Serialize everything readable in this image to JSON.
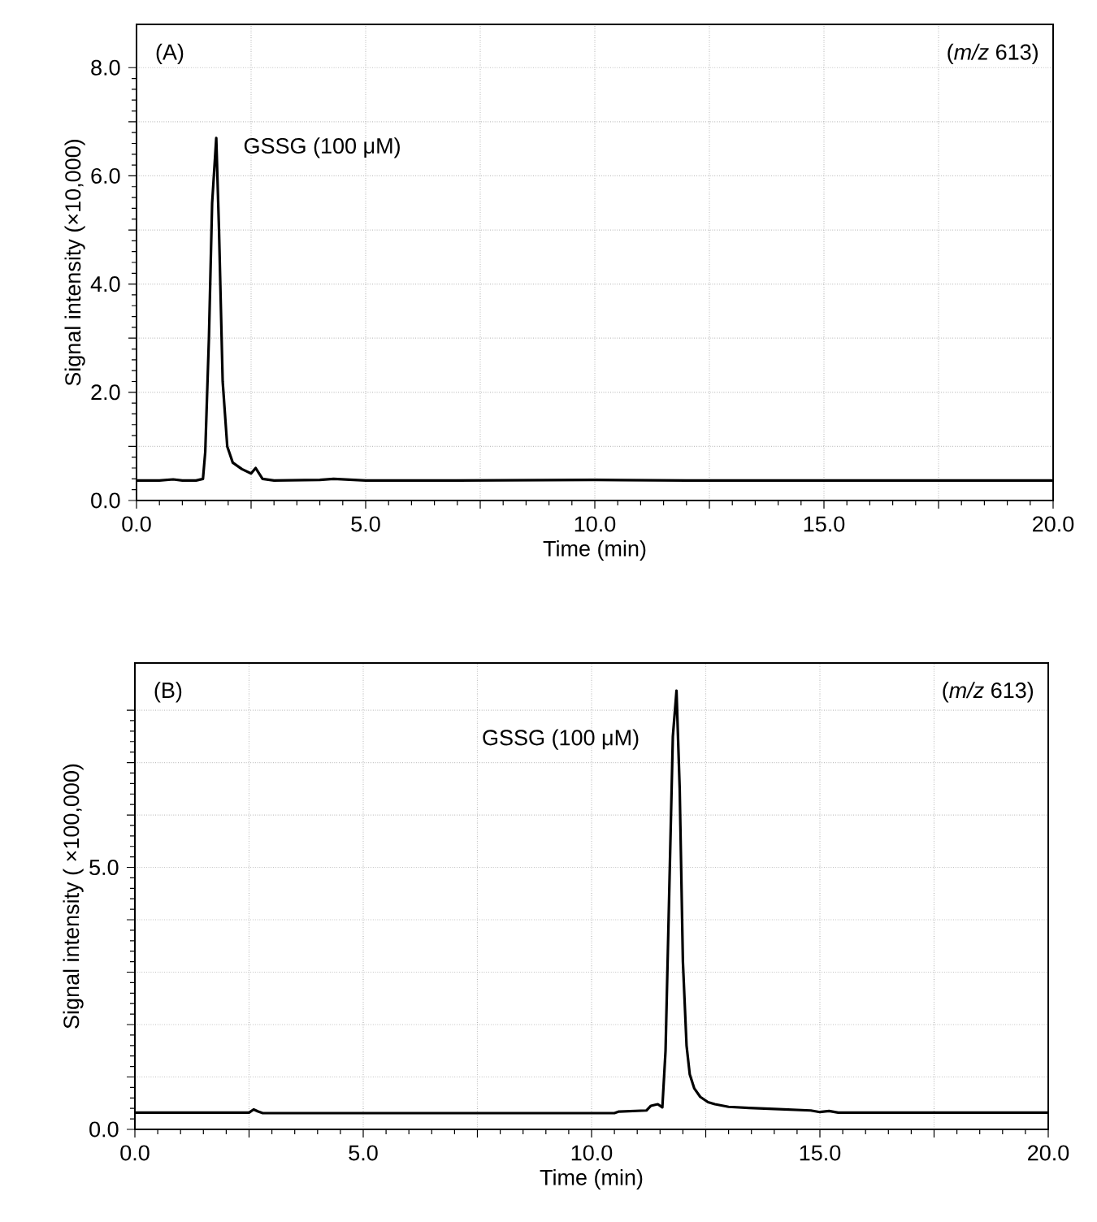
{
  "chart_data": [
    {
      "type": "line",
      "xlabel": "Time (min)",
      "ylabel": "Signal intensity (×10,000)",
      "annotations": [
        "(A)",
        "(*m/z* 613)",
        "GSSG (100 μM)"
      ],
      "xlim": [
        0,
        20
      ],
      "ylim": [
        0,
        8.8
      ],
      "xticks": [
        {
          "value": 0,
          "label": "0.0"
        },
        {
          "value": 2.5,
          "label": null
        },
        {
          "value": 5,
          "label": "5.0"
        },
        {
          "value": 7.5,
          "label": null
        },
        {
          "value": 10,
          "label": "10.0"
        },
        {
          "value": 12.5,
          "label": null
        },
        {
          "value": 15,
          "label": "15.0"
        },
        {
          "value": 17.5,
          "label": null
        },
        {
          "value": 20,
          "label": "20.0"
        }
      ],
      "yticks": [
        {
          "value": 0,
          "label": "0.0"
        },
        {
          "value": 1,
          "label": null
        },
        {
          "value": 2,
          "label": "2.0"
        },
        {
          "value": 3,
          "label": null
        },
        {
          "value": 4,
          "label": "4.0"
        },
        {
          "value": 5,
          "label": null
        },
        {
          "value": 6,
          "label": "6.0"
        },
        {
          "value": 7,
          "label": null
        },
        {
          "value": 8,
          "label": "8.0"
        }
      ],
      "grid": true,
      "series": [
        {
          "color": "#000000",
          "x": [
            0,
            0.5,
            0.8,
            1.0,
            1.3,
            1.45,
            1.5,
            1.58,
            1.65,
            1.74,
            1.8,
            1.88,
            1.98,
            2.1,
            2.3,
            2.5,
            2.6,
            2.75,
            3.0,
            4.0,
            4.3,
            5.0,
            7.0,
            10.0,
            12.0,
            15.0,
            18.0,
            20.0
          ],
          "values": [
            0.37,
            0.37,
            0.39,
            0.37,
            0.37,
            0.4,
            0.9,
            3.0,
            5.5,
            6.7,
            5.0,
            2.2,
            1.0,
            0.7,
            0.58,
            0.5,
            0.6,
            0.4,
            0.37,
            0.38,
            0.4,
            0.37,
            0.37,
            0.38,
            0.37,
            0.37,
            0.37,
            0.37
          ]
        }
      ]
    },
    {
      "type": "line",
      "xlabel": "Time (min)",
      "ylabel": "Signal intensity ( ×100,000)",
      "annotations": [
        "(B)",
        "(*m/z* 613)",
        "GSSG (100 μM)"
      ],
      "xlim": [
        0,
        20
      ],
      "ylim": [
        0,
        8.9
      ],
      "xticks": [
        {
          "value": 0,
          "label": "0.0"
        },
        {
          "value": 2.5,
          "label": null
        },
        {
          "value": 5,
          "label": "5.0"
        },
        {
          "value": 7.5,
          "label": null
        },
        {
          "value": 10,
          "label": "10.0"
        },
        {
          "value": 12.5,
          "label": null
        },
        {
          "value": 15,
          "label": "15.0"
        },
        {
          "value": 17.5,
          "label": null
        },
        {
          "value": 20,
          "label": "20.0"
        }
      ],
      "yticks": [
        {
          "value": 0,
          "label": "0.0"
        },
        {
          "value": 1,
          "label": null
        },
        {
          "value": 2,
          "label": null
        },
        {
          "value": 3,
          "label": null
        },
        {
          "value": 4,
          "label": null
        },
        {
          "value": 5,
          "label": "5.0"
        },
        {
          "value": 6,
          "label": null
        },
        {
          "value": 7,
          "label": null
        },
        {
          "value": 8,
          "label": null
        }
      ],
      "grid": true,
      "series": [
        {
          "color": "#000000",
          "x": [
            0,
            2.5,
            2.6,
            2.7,
            2.8,
            5.0,
            8.0,
            10.5,
            10.6,
            11.2,
            11.3,
            11.45,
            11.55,
            11.62,
            11.7,
            11.78,
            11.86,
            11.93,
            12.0,
            12.08,
            12.15,
            12.25,
            12.38,
            12.55,
            12.7,
            13.0,
            13.45,
            14.0,
            14.8,
            15.0,
            15.2,
            15.4,
            17.0,
            20.0
          ],
          "values": [
            0.32,
            0.32,
            0.38,
            0.34,
            0.31,
            0.31,
            0.31,
            0.31,
            0.34,
            0.36,
            0.45,
            0.48,
            0.42,
            1.5,
            4.5,
            7.5,
            8.37,
            6.5,
            3.2,
            1.6,
            1.05,
            0.78,
            0.62,
            0.52,
            0.48,
            0.43,
            0.41,
            0.39,
            0.36,
            0.33,
            0.35,
            0.32,
            0.32,
            0.32
          ]
        }
      ]
    }
  ]
}
